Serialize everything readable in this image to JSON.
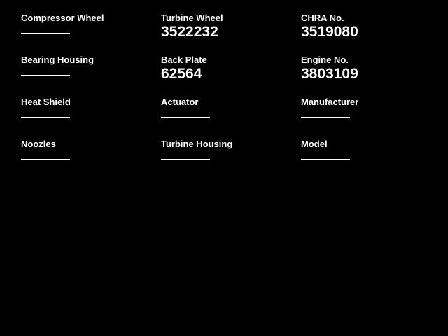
{
  "app": {
    "background_color": "#000000",
    "text_color": "#ffffff"
  },
  "form": {
    "fields": [
      {
        "label": "Compressor Wheel",
        "value": ""
      },
      {
        "label": "Turbine Wheel",
        "value": "3522232"
      },
      {
        "label": "CHRA No.",
        "value": "3519080"
      },
      {
        "label": "Bearing Housing",
        "value": ""
      },
      {
        "label": "Back Plate",
        "value": "62564"
      },
      {
        "label": "Engine No.",
        "value": "3803109"
      },
      {
        "label": "Heat Shield",
        "value": ""
      },
      {
        "label": "Actuator",
        "value": ""
      },
      {
        "label": "Manufacturer",
        "value": ""
      },
      {
        "label": "Noozles",
        "value": ""
      },
      {
        "label": "Turbine Housing",
        "value": ""
      },
      {
        "label": "Model",
        "value": ""
      }
    ]
  }
}
